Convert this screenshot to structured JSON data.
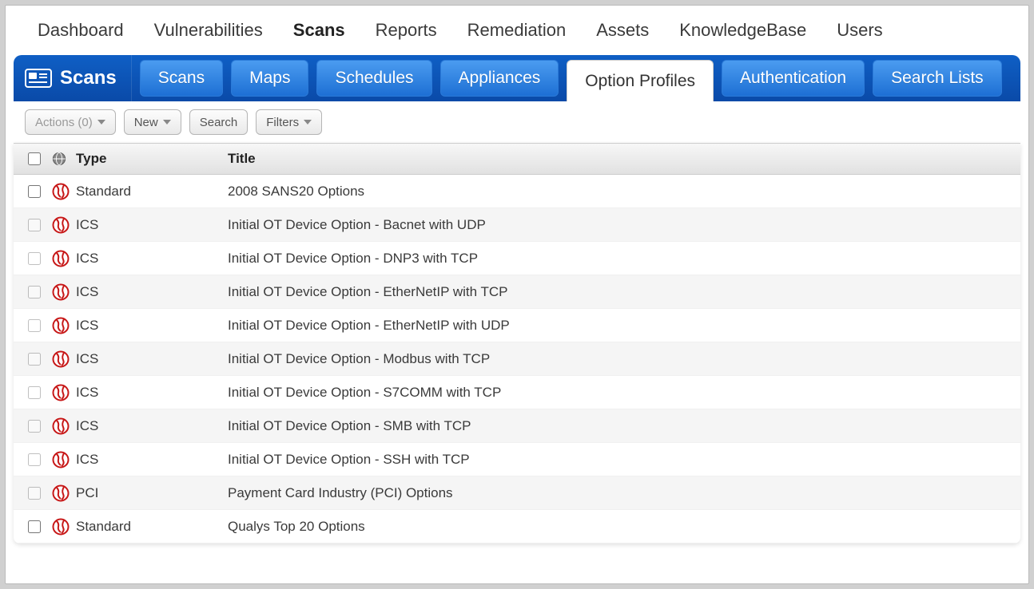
{
  "colors": {
    "page_bg": "#d0d0d0",
    "panel_bg": "#ffffff",
    "topnav_text": "#3a3a3a",
    "tabbar_grad_top": "#0f5fc5",
    "tabbar_grad_bottom": "#0a4aa8",
    "subtab_grad_top": "#4b9cf0",
    "subtab_grad_bottom": "#1d6fd4",
    "subtab_active_bg": "#ffffff",
    "toolbar_border": "#b5b5b5",
    "thead_grad_top": "#f7f7f7",
    "thead_grad_bottom": "#e1e1e1",
    "row_alt": "#f5f5f5",
    "globe_red": "#c71717",
    "globe_white": "#ffffff"
  },
  "topnav": {
    "items": [
      "Dashboard",
      "Vulnerabilities",
      "Scans",
      "Reports",
      "Remediation",
      "Assets",
      "KnowledgeBase",
      "Users"
    ],
    "active_index": 2
  },
  "tabbar": {
    "title": "Scans",
    "tabs": [
      "Scans",
      "Maps",
      "Schedules",
      "Appliances",
      "Option Profiles",
      "Authentication",
      "Search Lists"
    ],
    "active_index": 4
  },
  "toolbar": {
    "actions_label": "Actions (0)",
    "new_label": "New",
    "search_label": "Search",
    "filters_label": "Filters"
  },
  "table": {
    "headers": {
      "type": "Type",
      "title": "Title"
    },
    "rows": [
      {
        "checked": false,
        "bold_check": true,
        "type": "Standard",
        "title": "2008 SANS20 Options"
      },
      {
        "checked": false,
        "bold_check": false,
        "type": "ICS",
        "title": "Initial OT Device Option - Bacnet with UDP"
      },
      {
        "checked": false,
        "bold_check": false,
        "type": "ICS",
        "title": "Initial OT Device Option - DNP3 with TCP"
      },
      {
        "checked": false,
        "bold_check": false,
        "type": "ICS",
        "title": "Initial OT Device Option - EtherNetIP with TCP"
      },
      {
        "checked": false,
        "bold_check": false,
        "type": "ICS",
        "title": "Initial OT Device Option - EtherNetIP with UDP"
      },
      {
        "checked": false,
        "bold_check": false,
        "type": "ICS",
        "title": "Initial OT Device Option - Modbus with TCP"
      },
      {
        "checked": false,
        "bold_check": false,
        "type": "ICS",
        "title": "Initial OT Device Option - S7COMM with TCP"
      },
      {
        "checked": false,
        "bold_check": false,
        "type": "ICS",
        "title": "Initial OT Device Option - SMB with TCP"
      },
      {
        "checked": false,
        "bold_check": false,
        "type": "ICS",
        "title": "Initial OT Device Option - SSH with TCP"
      },
      {
        "checked": false,
        "bold_check": false,
        "type": "PCI",
        "title": "Payment Card Industry (PCI) Options"
      },
      {
        "checked": false,
        "bold_check": true,
        "type": "Standard",
        "title": "Qualys Top 20 Options"
      }
    ]
  }
}
